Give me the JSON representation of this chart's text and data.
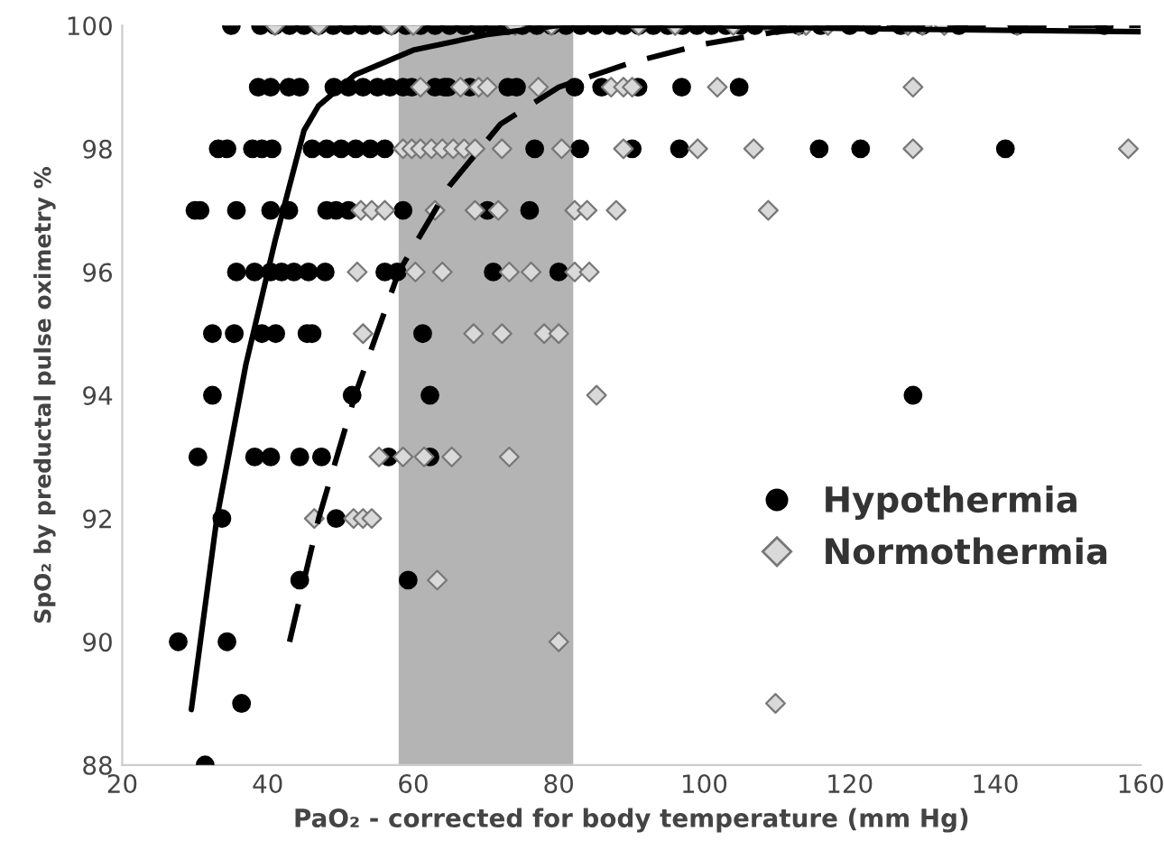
{
  "chart_data": {
    "type": "scatter",
    "xlabel": "PaO₂ - corrected for body temperature (mm Hg)",
    "ylabel": "SpO₂ by preductal pulse oximetry %",
    "xlim": [
      20,
      160
    ],
    "xticks": [
      20,
      40,
      60,
      80,
      100,
      120,
      140,
      160
    ],
    "ylim": [
      88,
      100
    ],
    "yticks": [
      88,
      90,
      92,
      94,
      96,
      98,
      100
    ],
    "grid": false,
    "legend": "right",
    "bands": [
      {
        "axis": "x",
        "from": 58,
        "to": 82,
        "color": "#b4b4b4"
      }
    ],
    "series": [
      {
        "name": "Hypothermia",
        "marker": "circle",
        "color": "#000000",
        "x": [
          35,
          39,
          41,
          43,
          45,
          47,
          49,
          51,
          53,
          55,
          57,
          59,
          61,
          63,
          65,
          67,
          69,
          71,
          73,
          75,
          77,
          79,
          81,
          83,
          85,
          87,
          89,
          91,
          93,
          95,
          97,
          99,
          101,
          103,
          105,
          107,
          110,
          113,
          116,
          120,
          123,
          127,
          130,
          135,
          143,
          155,
          38.7,
          40.4,
          42.9,
          44.4,
          49.1,
          51.1,
          53.1,
          55.1,
          56.8,
          58.6,
          59.8,
          63.0,
          64.3,
          64.8,
          67.8,
          73,
          74.2,
          82.2,
          85.9,
          90.9,
          96.9,
          104.8,
          33.2,
          34.4,
          37.9,
          39.2,
          40.6,
          46.1,
          48.1,
          50.1,
          52.1,
          54.1,
          56.1,
          76.7,
          82.9,
          90.1,
          96.6,
          115.8,
          121.5,
          141.4,
          30,
          30.7,
          35.7,
          40.4,
          42.9,
          48.1,
          49.4,
          51.1,
          58.6,
          70.2,
          76,
          35.7,
          38.2,
          40.4,
          41.9,
          43.6,
          45.6,
          47.9,
          56.1,
          57.8,
          71,
          80,
          32.4,
          35.4,
          39.2,
          41.1,
          45.4,
          46.1,
          61.3,
          32.4,
          51.6,
          62.3,
          128.7,
          30.4,
          38.2,
          40.4,
          44.4,
          47.4,
          56.6,
          62.3,
          33.7,
          49.4,
          44.4,
          59.3,
          27.7,
          34.4,
          36.4,
          31.4
        ],
        "values": [
          100,
          100,
          100,
          100,
          100,
          100,
          100,
          100,
          100,
          100,
          100,
          100,
          100,
          100,
          100,
          100,
          100,
          100,
          100,
          100,
          100,
          100,
          100,
          100,
          100,
          100,
          100,
          100,
          100,
          100,
          100,
          100,
          100,
          100,
          100,
          100,
          100,
          100,
          100,
          100,
          100,
          100,
          100,
          100,
          100,
          100,
          99,
          99,
          99,
          99,
          99,
          99,
          99,
          99,
          99,
          99,
          99,
          99,
          99,
          99,
          99,
          99,
          99,
          99,
          99,
          99,
          99,
          99,
          98,
          98,
          98,
          98,
          98,
          98,
          98,
          98,
          98,
          98,
          98,
          98,
          98,
          98,
          98,
          98,
          98,
          98,
          97,
          97,
          97,
          97,
          97,
          97,
          97,
          97,
          97,
          97,
          97,
          96,
          96,
          96,
          96,
          96,
          96,
          96,
          96,
          96,
          96,
          96,
          95,
          95,
          95,
          95,
          95,
          95,
          95,
          94,
          94,
          94,
          94,
          93,
          93,
          93,
          93,
          93,
          93,
          93,
          92,
          92,
          91,
          91,
          90,
          90,
          89,
          88
        ]
      },
      {
        "name": "Normothermia",
        "marker": "diamond",
        "color": "#d9d9d9",
        "x": [
          41,
          47,
          57,
          60,
          74,
          79,
          91,
          96,
          104,
          109,
          113,
          114,
          117,
          128,
          130,
          133,
          143,
          61,
          66.5,
          69,
          70.2,
          77.2,
          87.2,
          88.9,
          90.1,
          101.8,
          128.7,
          58.6,
          59.8,
          61,
          62.5,
          64,
          65.5,
          67,
          68.5,
          72.2,
          80.4,
          88.9,
          99.1,
          106.8,
          128.7,
          158.3,
          52.8,
          54.3,
          56.1,
          63,
          68.5,
          71.7,
          82.2,
          83.9,
          87.9,
          108.8,
          52.3,
          60.3,
          64,
          73.2,
          76.2,
          82.2,
          84.2,
          53.1,
          68.3,
          72.2,
          78,
          80,
          85.2,
          55.3,
          58.6,
          61.5,
          65.3,
          73.2,
          46.4,
          51.8,
          53.1,
          54.3,
          63.3,
          80,
          109.8
        ],
        "values": [
          100,
          100,
          100,
          100,
          100,
          100,
          100,
          100,
          100,
          100,
          100,
          100,
          100,
          100,
          100,
          100,
          100,
          99,
          99,
          99,
          99,
          99,
          99,
          99,
          99,
          99,
          99,
          98,
          98,
          98,
          98,
          98,
          98,
          98,
          98,
          98,
          98,
          98,
          98,
          98,
          98,
          98,
          97,
          97,
          97,
          97,
          97,
          97,
          97,
          97,
          97,
          97,
          96,
          96,
          96,
          96,
          96,
          96,
          96,
          95,
          95,
          95,
          95,
          95,
          94,
          93,
          93,
          93,
          93,
          93,
          92,
          92,
          92,
          92,
          91,
          90,
          89
        ]
      },
      {
        "type": "line",
        "color": "#000000",
        "line_style": "solid",
        "x": [
          29.5,
          33,
          37,
          41,
          45,
          47,
          52,
          60,
          70,
          80,
          100,
          120,
          160
        ],
        "values": [
          88.9,
          92,
          94.5,
          96.5,
          98.3,
          98.7,
          99.2,
          99.6,
          99.85,
          100,
          100,
          99.95,
          99.9
        ]
      },
      {
        "type": "line",
        "color": "#000000",
        "line_style": "dashed",
        "x": [
          43,
          47,
          52,
          58,
          65,
          72,
          80,
          90,
          100,
          110,
          120,
          160
        ],
        "values": [
          90,
          92,
          94,
          96,
          97.4,
          98.4,
          99,
          99.4,
          99.7,
          99.9,
          100,
          100
        ]
      }
    ]
  }
}
